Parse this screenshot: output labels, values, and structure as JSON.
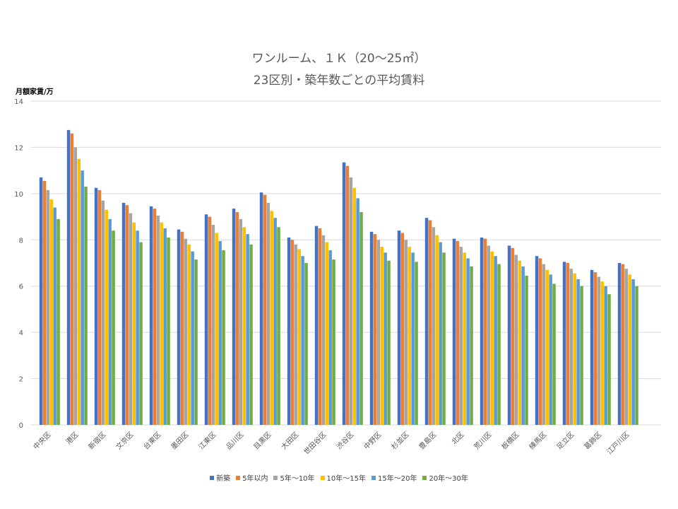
{
  "chart_data": {
    "type": "bar",
    "title": [
      "ワンルーム、１Ｋ（20～25㎡）",
      "23区別・築年数ごとの平均賃料"
    ],
    "ylabel": "月額家賃/万",
    "xlabel": "",
    "ylim": [
      0,
      14
    ],
    "yticks": [
      0,
      2,
      4,
      6,
      8,
      10,
      12,
      14
    ],
    "grid": true,
    "legend_position": "bottom",
    "categories": [
      "中央区",
      "港区",
      "新宿区",
      "文京区",
      "台東区",
      "墨田区",
      "江東区",
      "品川区",
      "目黒区",
      "大田区",
      "世田谷区",
      "渋谷区",
      "中野区",
      "杉並区",
      "豊島区",
      "北区",
      "荒川区",
      "板橋区",
      "練馬区",
      "足立区",
      "葛飾区",
      "江戸川区"
    ],
    "series": [
      {
        "name": "新築",
        "color": "#4472C4",
        "values": [
          10.7,
          12.75,
          10.25,
          9.6,
          9.45,
          8.45,
          9.1,
          9.35,
          10.05,
          8.1,
          8.6,
          11.35,
          8.35,
          8.4,
          8.95,
          8.05,
          8.1,
          7.75,
          7.3,
          7.05,
          6.7,
          7.0
        ]
      },
      {
        "name": "5年以内",
        "color": "#ED7D31",
        "values": [
          10.55,
          12.6,
          10.15,
          9.5,
          9.35,
          8.35,
          9.0,
          9.2,
          9.95,
          8.0,
          8.5,
          11.2,
          8.25,
          8.3,
          8.85,
          7.95,
          8.05,
          7.65,
          7.2,
          7.0,
          6.6,
          6.95
        ]
      },
      {
        "name": "5年～10年",
        "color": "#A5A5A5",
        "values": [
          10.15,
          12.0,
          9.7,
          9.15,
          9.05,
          8.05,
          8.65,
          8.9,
          9.6,
          7.8,
          8.2,
          10.7,
          8.0,
          8.0,
          8.55,
          7.7,
          7.75,
          7.35,
          6.95,
          6.75,
          6.4,
          6.75
        ]
      },
      {
        "name": "10年～15年",
        "color": "#FFC000",
        "values": [
          9.75,
          11.5,
          9.3,
          8.75,
          8.75,
          7.8,
          8.3,
          8.55,
          9.25,
          7.6,
          7.9,
          10.25,
          7.7,
          7.7,
          8.2,
          7.45,
          7.5,
          7.1,
          6.7,
          6.55,
          6.2,
          6.5
        ]
      },
      {
        "name": "15年～20年",
        "color": "#5B9BD5",
        "values": [
          9.4,
          11.0,
          8.9,
          8.4,
          8.5,
          7.5,
          7.95,
          8.25,
          8.95,
          7.3,
          7.55,
          9.8,
          7.45,
          7.45,
          7.9,
          7.2,
          7.3,
          6.85,
          6.5,
          6.3,
          6.0,
          6.3
        ]
      },
      {
        "name": "20年～30年",
        "color": "#70AD47",
        "values": [
          8.9,
          10.3,
          8.4,
          7.9,
          8.1,
          7.15,
          7.55,
          7.8,
          8.55,
          7.0,
          7.15,
          9.2,
          7.1,
          7.05,
          7.45,
          6.85,
          6.95,
          6.45,
          6.1,
          6.0,
          5.65,
          6.0
        ]
      }
    ]
  }
}
